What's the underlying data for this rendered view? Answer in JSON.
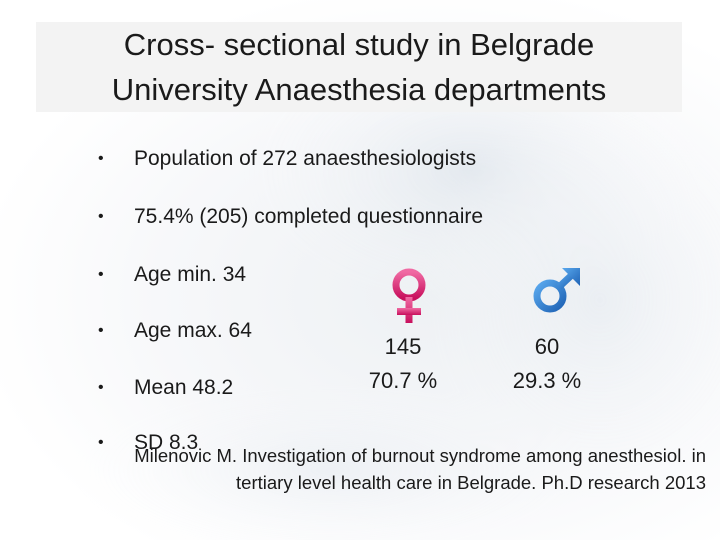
{
  "slide": {
    "title": {
      "line1": "Cross- sectional study in Belgrade",
      "line2": "University Anaesthesia departments"
    },
    "bullets": [
      "Population of 272 anaesthesiologists",
      "75.4% (205) completed questionnaire",
      "Age min. 34",
      "Age max. 64",
      "Mean 48.2",
      "SD 8.3"
    ],
    "bullet_glyph": "•",
    "gender_stats": {
      "female": {
        "icon": "female-symbol-icon",
        "color": "#e0317a",
        "count": "145",
        "percent": "70.7 %"
      },
      "male": {
        "icon": "male-symbol-icon",
        "color": "#2e7fd0",
        "count": "60",
        "percent": "29.3 %"
      }
    },
    "citation": {
      "line1": "Milenovic M. Investigation of burnout syndrome among anesthesiol. in",
      "line2": "tertiary level health care in Belgrade. Ph.D research 2013"
    }
  }
}
